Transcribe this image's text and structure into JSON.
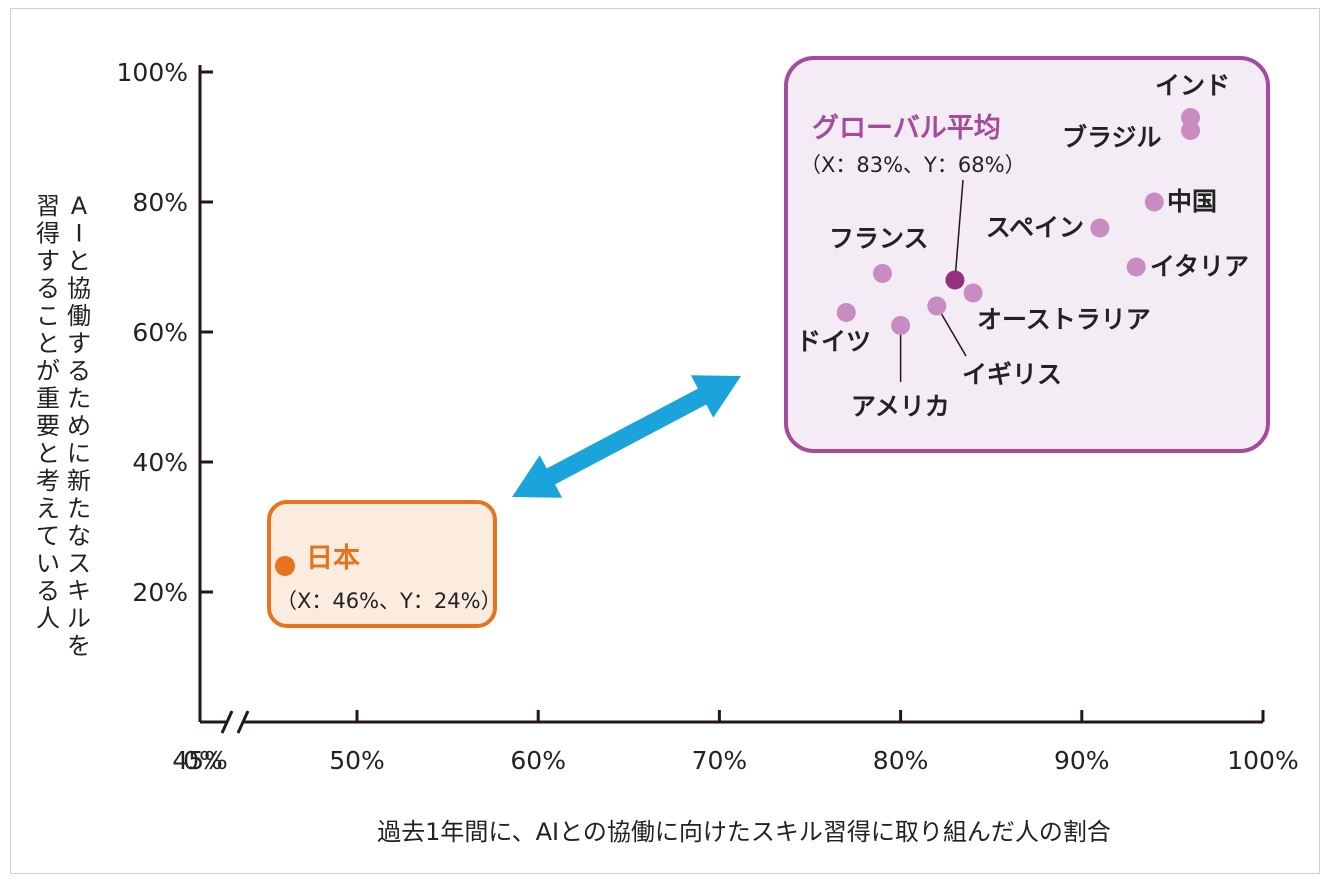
{
  "chart_data": {
    "type": "scatter",
    "xlabel": "過去1年間に、AIとの協働に向けたスキル習得に取り組んだ人の割合",
    "ylabel": "AIと協働するために新たなスキルを習得することが重要と考えている人",
    "x_ticks": [
      "0%",
      "45%",
      "50%",
      "60%",
      "70%",
      "80%",
      "90%",
      "100%"
    ],
    "y_ticks": [
      "20%",
      "40%",
      "60%",
      "80%",
      "100%"
    ],
    "xlim": [
      45,
      100
    ],
    "ylim": [
      0,
      100
    ],
    "x_axis_break": true,
    "points": [
      {
        "label": "インド",
        "x": 96,
        "y": 93
      },
      {
        "label": "ブラジル",
        "x": 96,
        "y": 91
      },
      {
        "label": "中国",
        "x": 94,
        "y": 80
      },
      {
        "label": "スペイン",
        "x": 91,
        "y": 76
      },
      {
        "label": "イタリア",
        "x": 93,
        "y": 70
      },
      {
        "label": "フランス",
        "x": 79,
        "y": 69
      },
      {
        "label": "オーストラリア",
        "x": 84,
        "y": 66
      },
      {
        "label": "イギリス",
        "x": 82,
        "y": 64
      },
      {
        "label": "ドイツ",
        "x": 77,
        "y": 63
      },
      {
        "label": "アメリカ",
        "x": 80,
        "y": 61
      }
    ],
    "highlights": [
      {
        "label": "グローバル平均",
        "sub": "（X：83%、Y：68%）",
        "x": 83,
        "y": 68
      },
      {
        "label": "日本",
        "sub": "（X：46%、Y：24%）",
        "x": 46,
        "y": 24
      }
    ],
    "colors": {
      "global_box_border": "#a54a9c",
      "global_box_fill": "#f4ecf5",
      "country_point": "#c98cc1",
      "global_point": "#93307f",
      "global_label": "#a54a9c",
      "japan_box_border": "#e8731d",
      "japan_box_fill": "#fcece0",
      "japan": "#e8731d",
      "arrow": "#1ba3dc",
      "axis": "#231815"
    }
  }
}
